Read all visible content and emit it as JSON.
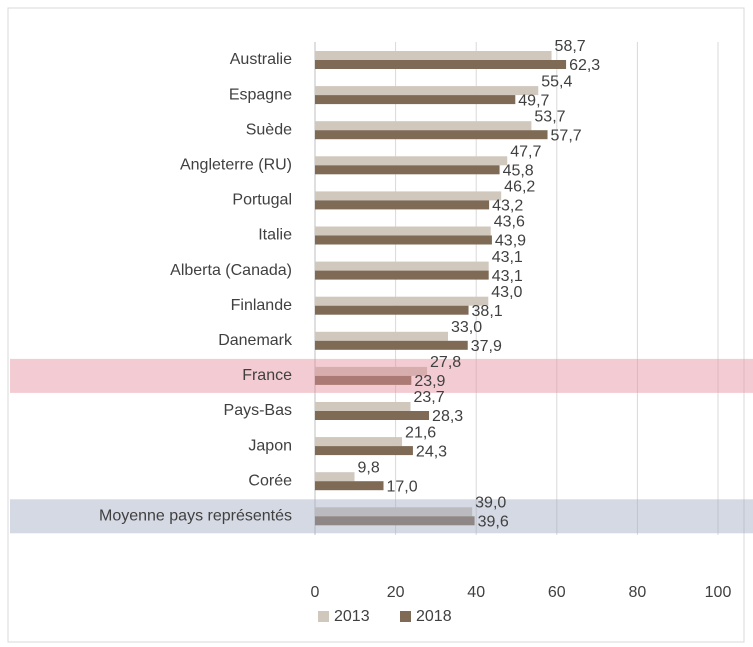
{
  "chart_data": {
    "type": "bar",
    "orientation": "horizontal",
    "categories": [
      "Australie",
      "Espagne",
      "Suède",
      "Angleterre (RU)",
      "Portugal",
      "Italie",
      "Alberta (Canada)",
      "Finlande",
      "Danemark",
      "France",
      "Pays-Bas",
      "Japon",
      "Corée",
      "Moyenne pays représentés"
    ],
    "series": [
      {
        "name": "2013",
        "color": "#d0c7bd",
        "label_color": "#c6bdb4",
        "values": [
          58.7,
          55.4,
          53.7,
          47.7,
          46.2,
          43.6,
          43.1,
          43.0,
          33.0,
          27.8,
          23.7,
          21.6,
          9.8,
          39.0
        ],
        "value_labels": [
          "58,7",
          "55,4",
          "53,7",
          "47,7",
          "46,2",
          "43,6",
          "43,1",
          "43,0",
          "33,0",
          "27,8",
          "23,7",
          "21,6",
          "9,8",
          "39,0"
        ]
      },
      {
        "name": "2018",
        "color": "#7f6a55",
        "label_color": "#6b5a48",
        "values": [
          62.3,
          49.7,
          57.7,
          45.8,
          43.2,
          43.9,
          43.1,
          38.1,
          37.9,
          23.9,
          28.3,
          24.3,
          17.0,
          39.6
        ],
        "value_labels": [
          "62,3",
          "49,7",
          "57,7",
          "45,8",
          "43,2",
          "43,9",
          "43,1",
          "38,1",
          "37,9",
          "23,9",
          "28,3",
          "24,3",
          "17,0",
          "39,6"
        ]
      }
    ],
    "xlim": [
      0,
      100
    ],
    "xticks": [
      0,
      20,
      40,
      60,
      80,
      100
    ],
    "grid": true,
    "legend": "bottom",
    "highlight": [
      {
        "index": 9,
        "color": "#e38e9b"
      },
      {
        "index": 13,
        "color": "#a2abc1"
      }
    ]
  }
}
